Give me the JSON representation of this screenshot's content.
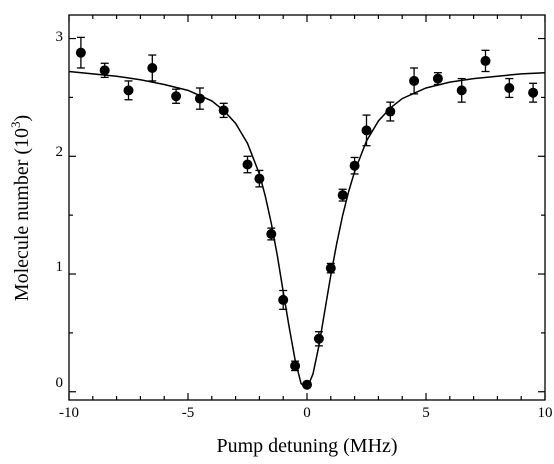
{
  "chart_data": {
    "type": "scatter",
    "title": "",
    "xlabel": "Pump detuning (MHz)",
    "ylabel_main": "Molecule number (10",
    "ylabel_exp": "3",
    "ylabel_close": ")",
    "xlim": [
      -10,
      10
    ],
    "ylim": [
      -0.07,
      3.2
    ],
    "xticks": [
      -10,
      -5,
      0,
      5,
      10
    ],
    "yticks": [
      0,
      1,
      2,
      3
    ],
    "xtick_labels": [
      "-10",
      "-5",
      "0",
      "5",
      "10"
    ],
    "ytick_labels": [
      "0",
      "1",
      "2",
      "3"
    ],
    "xminor_step": 1,
    "yminor_step": 0.5,
    "grid": false,
    "legend": "none",
    "colors": {
      "points": "#000000",
      "fit": "#000000"
    },
    "series": [
      {
        "kind": "points_with_errorbars",
        "x": [
          -9.5,
          -8.5,
          -7.5,
          -6.5,
          -5.5,
          -4.5,
          -3.5,
          -2.5,
          -2.0,
          -1.5,
          -1.0,
          -0.5,
          0.0,
          0.5,
          1.0,
          1.5,
          2.0,
          2.5,
          3.5,
          4.5,
          5.5,
          6.5,
          7.5,
          8.5,
          9.5
        ],
        "y": [
          2.88,
          2.73,
          2.56,
          2.75,
          2.51,
          2.49,
          2.39,
          1.93,
          1.81,
          1.34,
          0.78,
          0.22,
          0.06,
          0.45,
          1.05,
          1.67,
          1.92,
          2.22,
          2.38,
          2.64,
          2.66,
          2.56,
          2.81,
          2.58,
          2.54
        ],
        "err": [
          0.13,
          0.06,
          0.08,
          0.11,
          0.06,
          0.09,
          0.06,
          0.07,
          0.07,
          0.05,
          0.08,
          0.04,
          0.02,
          0.06,
          0.04,
          0.05,
          0.07,
          0.13,
          0.08,
          0.11,
          0.05,
          0.1,
          0.09,
          0.08,
          0.08
        ]
      },
      {
        "kind": "fit_curve",
        "x": [
          -10,
          -9,
          -8,
          -7,
          -6,
          -5,
          -4,
          -3.5,
          -3,
          -2.5,
          -2,
          -1.75,
          -1.5,
          -1.25,
          -1,
          -0.75,
          -0.5,
          -0.25,
          0,
          0.25,
          0.5,
          0.75,
          1,
          1.25,
          1.5,
          1.75,
          2,
          2.5,
          3,
          3.5,
          4,
          5,
          6,
          7,
          8,
          9,
          10
        ],
        "y": [
          2.72,
          2.7,
          2.68,
          2.65,
          2.61,
          2.56,
          2.47,
          2.39,
          2.28,
          2.11,
          1.85,
          1.66,
          1.43,
          1.16,
          0.85,
          0.55,
          0.27,
          0.07,
          0.03,
          0.15,
          0.39,
          0.69,
          0.99,
          1.26,
          1.5,
          1.7,
          1.87,
          2.13,
          2.3,
          2.41,
          2.49,
          2.58,
          2.63,
          2.66,
          2.68,
          2.7,
          2.71
        ]
      }
    ]
  }
}
